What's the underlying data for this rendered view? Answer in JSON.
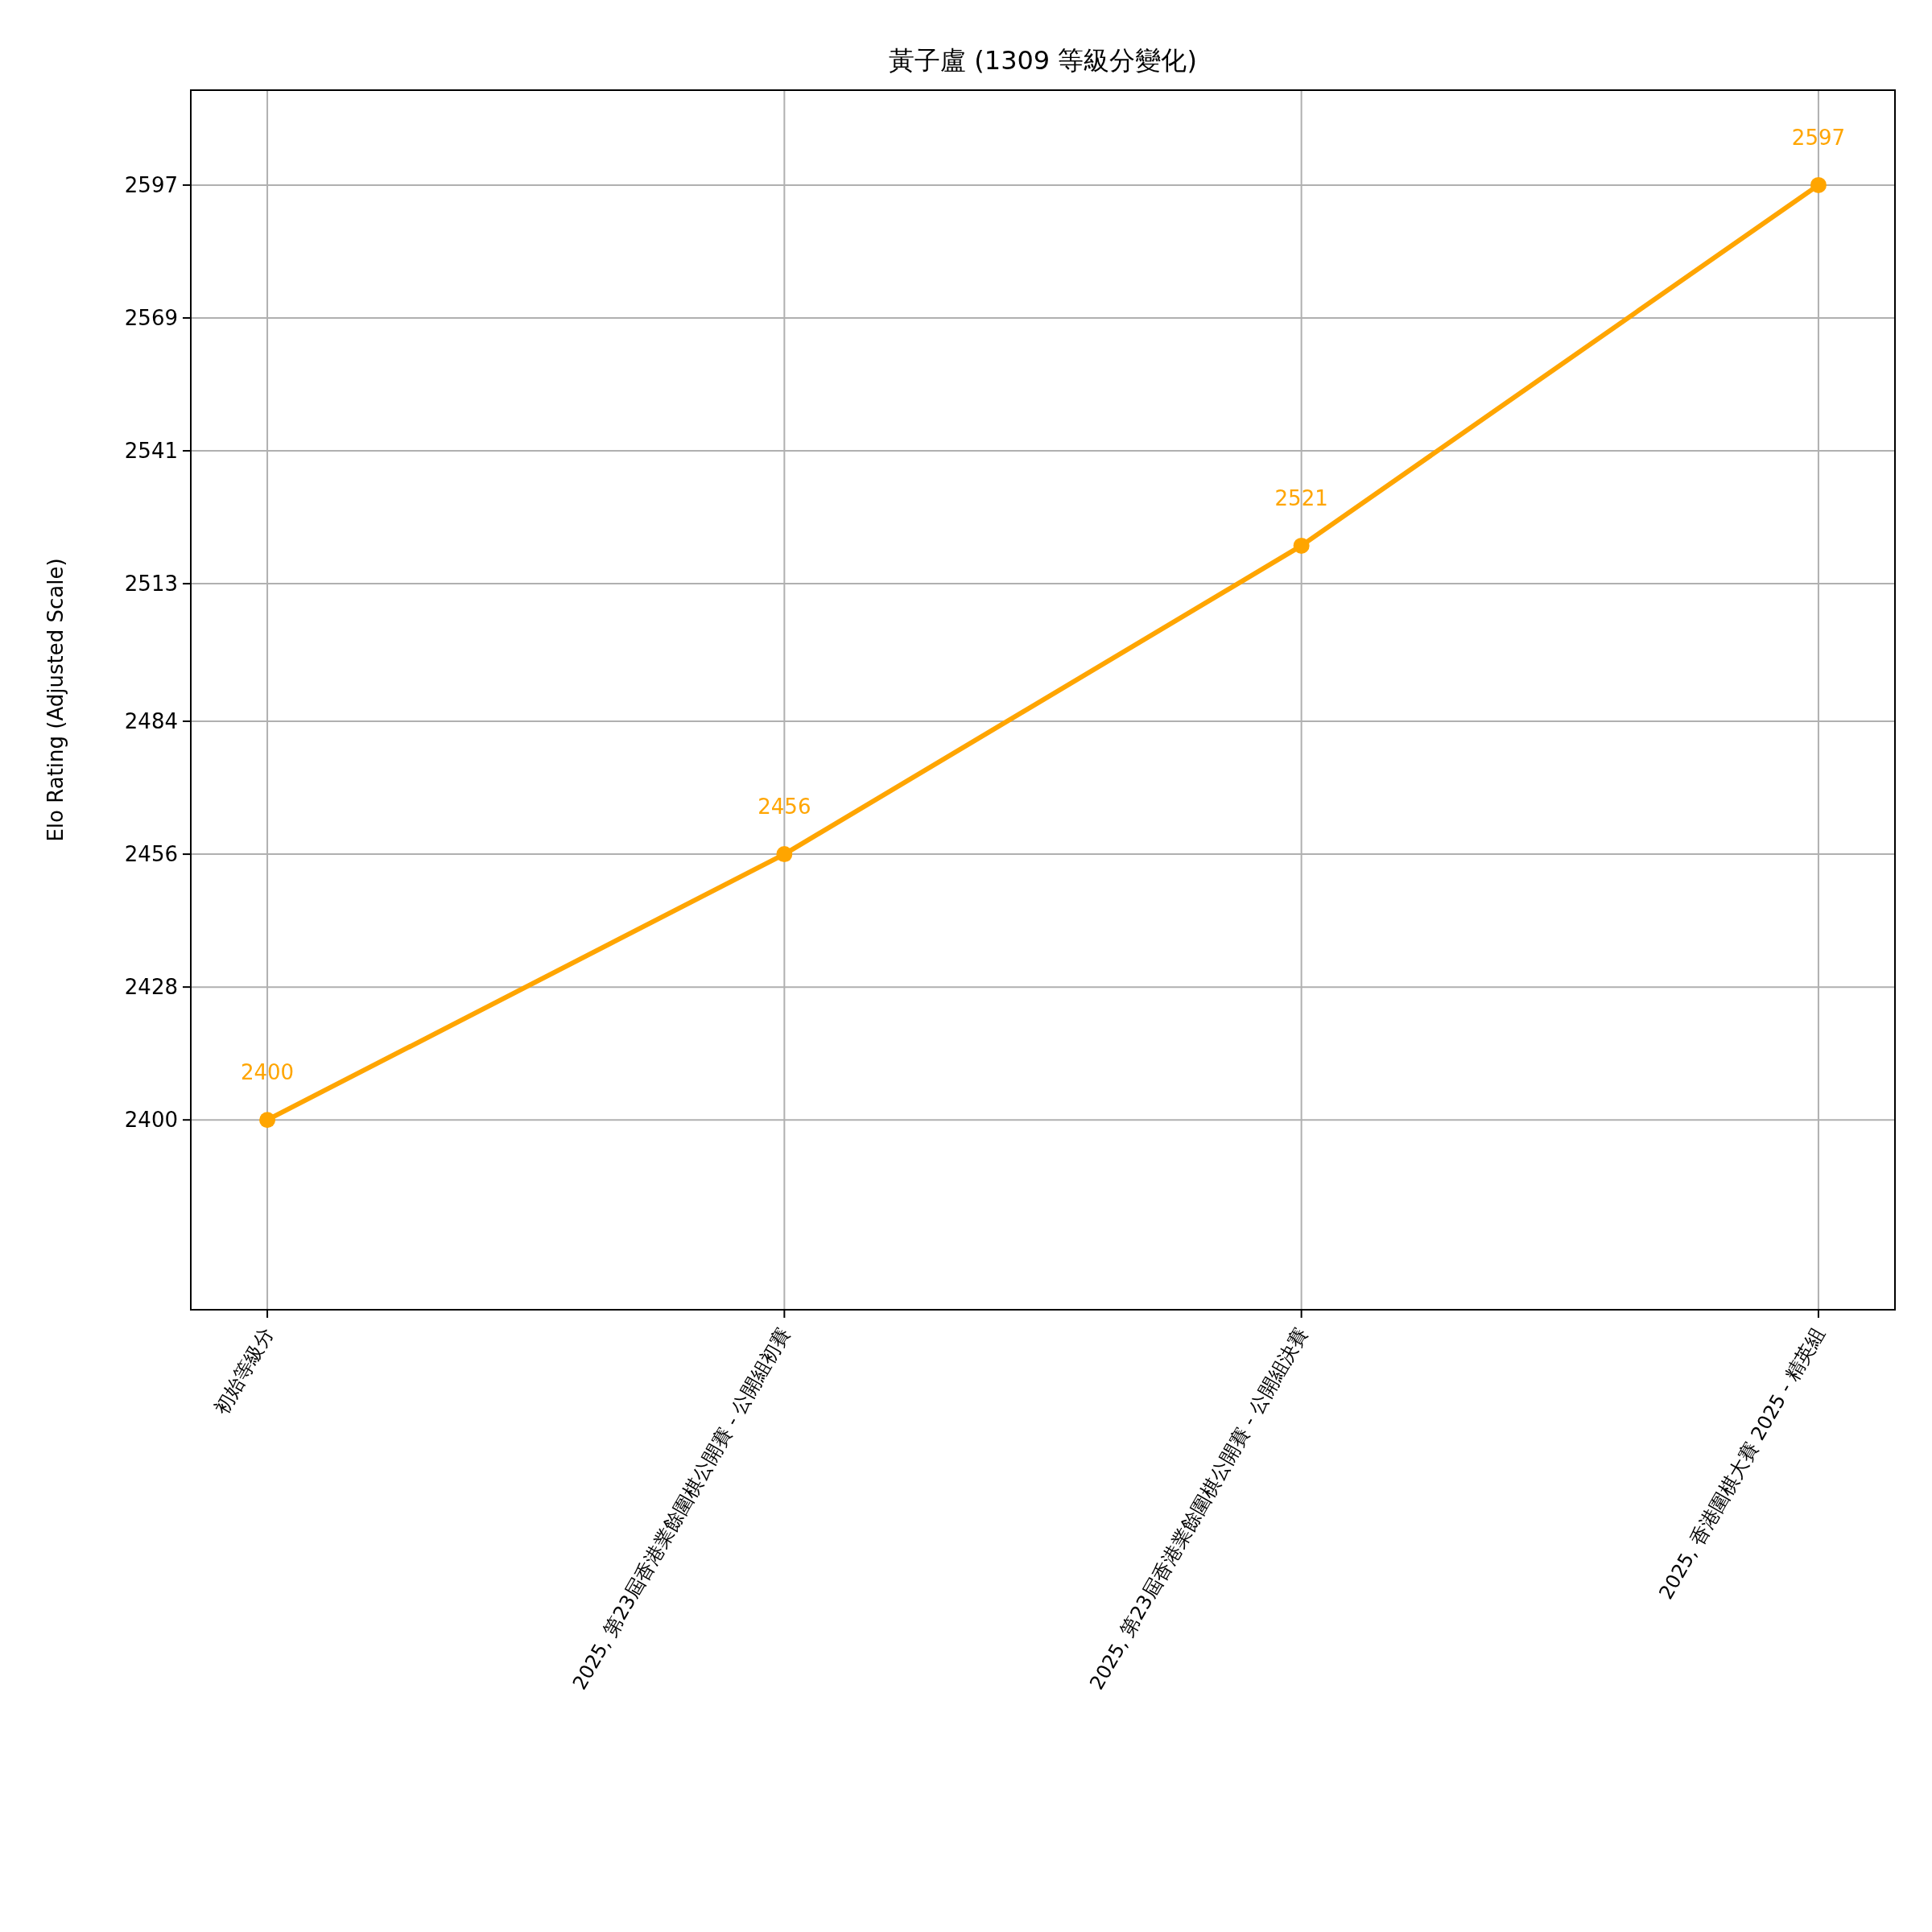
{
  "chart_data": {
    "type": "line",
    "title": "黃子盧 (1309 等級分變化)",
    "ylabel": "Elo Rating (Adjusted Scale)",
    "categories": [
      "初始等級分",
      "2025, 第23屆香港業餘圍棋公開賽 - 公開組初賽",
      "2025, 第23屆香港業餘圍棋公開賽 - 公開組決賽",
      "2025, 香港圍棋大賽 2025 - 精英組"
    ],
    "values": [
      2400,
      2456,
      2521,
      2597
    ],
    "color": "#ffa500",
    "ylim": [
      2360,
      2617
    ],
    "yticks": [
      2400,
      2428,
      2456,
      2484,
      2513,
      2541,
      2569,
      2597
    ],
    "grid": true,
    "marker": "circle",
    "data_labels": true
  }
}
